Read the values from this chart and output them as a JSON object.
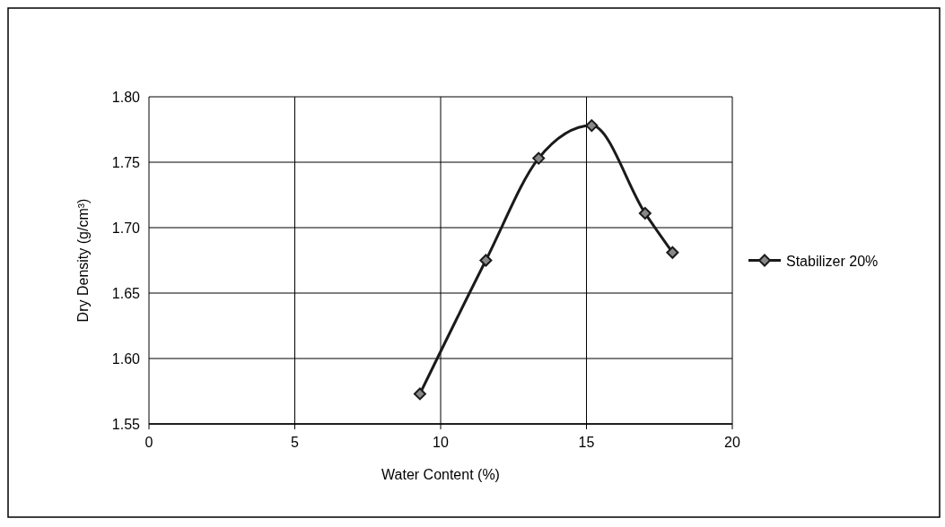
{
  "chart_data": {
    "type": "line",
    "xlabel": "Water Content  (%)",
    "ylabel": "Dry Density  (g/cm³)",
    "xlim": [
      0,
      20
    ],
    "xticks": [
      0,
      5,
      10,
      15,
      20
    ],
    "ylim": [
      1.55,
      1.8
    ],
    "yticks": [
      {
        "value": 1.55,
        "label": "1.55"
      },
      {
        "value": 1.6,
        "label": "1.60"
      },
      {
        "value": 1.65,
        "label": "1.65"
      },
      {
        "value": 1.7,
        "label": "1.70"
      },
      {
        "value": 1.75,
        "label": "1.75"
      },
      {
        "value": 1.8,
        "label": "1.80"
      }
    ],
    "grid": true,
    "legend": "right",
    "marker": "diamond",
    "line_style": "solid",
    "series": [
      {
        "name": "Stabilizer 20%",
        "color": "#1a1a1a",
        "x": [
          9.29,
          11.55,
          13.36,
          15.18,
          17.01,
          17.95
        ],
        "values": [
          1.573,
          1.675,
          1.753,
          1.778,
          1.711,
          1.681
        ]
      }
    ]
  }
}
